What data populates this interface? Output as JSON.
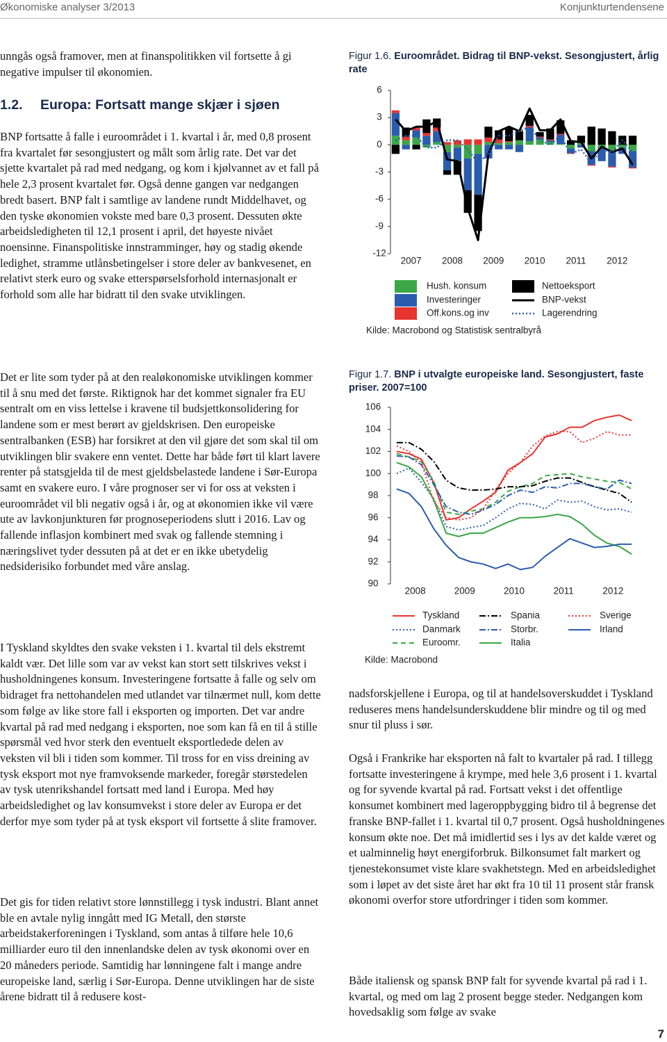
{
  "header": {
    "left": "Økonomiske analyser 3/2013",
    "right": "Konjunkturtendensene"
  },
  "left_column": {
    "intro": "unngås også framover, men at finanspolitikken vil fortsette å gi negative impulser til økonomien.",
    "heading_number": "1.2.",
    "heading": "Europa: Fortsatt mange skjær i sjøen",
    "paragraphs": [
      "BNP fortsatte å falle i euroområdet i 1. kvartal i år, med 0,8 prosent fra kvartalet før sesongjustert og målt som årlig rate. Det var det sjette kvartalet på rad med nedgang, og kom i kjølvannet av et fall på hele 2,3 prosent kvartalet før. Også denne gangen var nedgangen bredt basert. BNP falt i samtlige av landene rundt Middelhavet, og den tyske økonomien vokste med bare 0,3 prosent. Dessuten økte arbeidsledigheten til 12,1 prosent i april, det høyeste nivået noensinne. Finanspolitiske innstramminger, høy og stadig økende ledighet, stramme utlånsbetingelser i store deler av bankvesenet, en relativt sterk euro og svake etterspørselsforhold internasjonalt er forhold som alle har bidratt til den svake utviklingen.",
      "Det er lite som tyder på at den realøkonomiske utviklingen kommer til å snu med det første. Riktignok har det kommet signaler fra EU sentralt om en viss lettelse i kravene til budsjettkonsolidering for landene som er mest berørt av gjeldskrisen. Den europeiske sentralbanken (ESB) har forsikret at den vil gjøre det som skal til om utviklingen blir svakere enn ventet. Dette har både ført til klart lavere renter på statsgjelda til de mest gjeldsbelastede landene i Sør-Europa samt en svakere euro. I våre prognoser ser vi for oss at veksten i euroområdet vil bli negativ også i år, og at økonomien ikke vil være ute av lavkonjunkturen før prognoseperiodens slutt i 2016. Lav og fallende inflasjon kombinert med svak og fallende stemning i næringslivet tyder dessuten på at det er en ikke ubetydelig nedsiderisiko forbundet med våre anslag.",
      "I Tyskland skyldtes den svake veksten i 1. kvartal til dels ekstremt kaldt vær. Det lille som var av vekst kan stort sett tilskrives vekst i husholdningenes konsum. Investeringene fortsatte å falle og selv om bidraget fra nettohandelen med utlandet var tilnærmet null, kom dette som følge av like store fall i eksporten og importen. Det var andre kvartal på rad med nedgang i eksporten, noe som kan få en til å stille spørsmål ved hvor sterk den eventuelt eksportledede delen av veksten vil bli i tiden som kommer. Til tross for en viss dreining av tysk eksport mot nye framvoksende markeder, foregår størstedelen av tysk utenrikshandel fortsatt med land i Europa. Med høy arbeidsledighet og lav konsumvekst i store deler av Europa er det derfor mye som tyder på at tysk eksport vil fortsette å slite framover.",
      "Det gis for tiden relativt store lønnstillegg i tysk industri. Blant annet ble en avtale nylig inngått med IG Metall, den største arbeidstakerforeningen i Tyskland, som antas å tilføre hele 10,6 milliarder euro til den innenlandske delen av tysk økonomi over en 20 måneders periode. Samtidig har lønningene falt i mange andre europeiske land, særlig i Sør-Europa. Denne utviklingen har de siste årene bidratt til å redusere kost-"
    ]
  },
  "right_column": {
    "paragraphs": [
      "nadsforskjellene i Europa, og til at handelsoverskuddet i Tyskland reduseres mens handelsunderskuddene blir mindre og til og med snur til pluss i sør.",
      "Også i Frankrike har eksporten nå falt to kvartaler på rad. I tillegg fortsatte investeringene å krympe, med hele 3,6 prosent i 1. kvartal og for syvende kvartal på rad. Fortsatt vekst i det offentlige konsumet kombinert med lageroppbygging bidro til å begrense det franske BNP-fallet i 1. kvartal til 0,7 prosent. Også husholdningenes konsum økte noe. Det må imidlertid ses i lys av det kalde været og et ualminnelig høyt energiforbruk. Bilkonsumet falt markert og tjenestekonsumet viste klare svakhetstegn. Med en arbeidsledighet som i løpet av det siste året har økt fra 10 til 11 prosent står fransk økonomi overfor store utfordringer i tiden som kommer.",
      "Både italiensk og spansk BNP falt for syvende kvartal på rad i 1. kvartal, og med om lag 2 prosent begge steder. Nedgangen kom hovedsaklig som følge av svake"
    ]
  },
  "page_number": "7",
  "chart_data": [
    {
      "type": "bar",
      "figure_label": "Figur 1.6.",
      "title": "Euroområdet. Bidrag til BNP-vekst. Sesongjustert, årlig rate",
      "source": "Kilde: Macrobond og Statistisk sentralbyrå",
      "categories": [
        "2007",
        null,
        null,
        null,
        "2008",
        null,
        null,
        null,
        "2009",
        null,
        null,
        null,
        "2010",
        null,
        null,
        null,
        "2011",
        null,
        null,
        null,
        "2012",
        null,
        null,
        null
      ],
      "ylim": [
        -12,
        6
      ],
      "yticks": [
        6,
        3,
        0,
        -3,
        -6,
        -9,
        -12
      ],
      "grid": false,
      "series": [
        {
          "name": "Hush. konsum",
          "type": "bar",
          "color": "#3aa845",
          "values": [
            1.0,
            0.5,
            0.8,
            -0.3,
            0.3,
            -0.8,
            -0.3,
            -1.5,
            -1.0,
            0.3,
            0.2,
            0.3,
            0.5,
            0.4,
            0.6,
            0.3,
            0.1,
            -0.4,
            0.2,
            -0.7,
            -0.3,
            -0.6,
            -0.3,
            -0.7
          ]
        },
        {
          "name": "Investeringer",
          "type": "bar",
          "color": "#2a5cae",
          "values": [
            2.5,
            -0.5,
            0.8,
            1.0,
            1.2,
            -2.0,
            -1.5,
            -3.5,
            -4.5,
            -1.5,
            -0.5,
            -0.5,
            -0.8,
            1.5,
            0.2,
            0.2,
            1.0,
            -0.5,
            -0.3,
            -1.5,
            -1.5,
            -1.8,
            -0.7,
            -1.8
          ]
        },
        {
          "name": "Off.kons.og inv",
          "type": "bar",
          "color": "#e8332f",
          "values": [
            0.3,
            0.4,
            0.3,
            0.3,
            0.4,
            0.3,
            0.5,
            0.6,
            0.6,
            0.5,
            0.4,
            0.1,
            0.0,
            0.2,
            0.1,
            0.1,
            0.1,
            -0.1,
            0.0,
            -0.1,
            0.0,
            -0.1,
            0.0,
            -0.1
          ]
        },
        {
          "name": "Nettoeksport",
          "type": "bar",
          "color": "#000000",
          "values": [
            -1.0,
            1.0,
            -0.5,
            1.5,
            1.0,
            -0.5,
            -1.5,
            -2.5,
            -4.0,
            1.2,
            1.0,
            1.5,
            1.0,
            1.2,
            0.5,
            1.2,
            1.5,
            0.5,
            0.8,
            2.0,
            1.8,
            1.5,
            1.0,
            1.0
          ]
        },
        {
          "name": "BNP-vekst",
          "type": "line",
          "dash": "solid",
          "color": "#000000",
          "values": [
            2.8,
            1.5,
            2.0,
            2.0,
            2.6,
            -1.6,
            -1.8,
            -7.0,
            -10.5,
            -1.0,
            1.5,
            2.0,
            1.5,
            4.0,
            1.6,
            1.6,
            2.8,
            0.4,
            0.3,
            -1.5,
            -0.2,
            -0.8,
            -0.4,
            -2.2
          ]
        },
        {
          "name": "Lagerendring",
          "type": "line",
          "dash": "dotted",
          "color": "#2a5cae",
          "values": [
            0.5,
            1.0,
            1.0,
            -0.3,
            -0.3,
            0.5,
            0.5,
            -0.5,
            -2.0,
            -1.0,
            1.0,
            1.0,
            1.5,
            2.0,
            0.5,
            0.0,
            1.0,
            -1.0,
            -0.5,
            -2.0,
            -0.5,
            -0.8,
            0.5,
            -0.8
          ]
        }
      ]
    },
    {
      "type": "line",
      "figure_label": "Figur 1.7.",
      "title": "BNP i utvalgte europeiske land. Sesongjustert, faste priser. 2007=100",
      "source": "Kilde: Macrobond",
      "categories": [
        "2008",
        null,
        null,
        null,
        "2009",
        null,
        null,
        null,
        "2010",
        null,
        null,
        null,
        "2011",
        null,
        null,
        null,
        "2012",
        null,
        null,
        null
      ],
      "ylim": [
        90,
        106
      ],
      "yticks": [
        106,
        104,
        102,
        100,
        98,
        96,
        94,
        92,
        90
      ],
      "grid": false,
      "series": [
        {
          "name": "Tyskland",
          "dash": "solid",
          "color": "#e8332f",
          "values": [
            102.0,
            101.8,
            101.3,
            99.2,
            95.8,
            96.0,
            96.8,
            97.5,
            98.3,
            100.3,
            101.0,
            101.8,
            103.3,
            103.6,
            104.2,
            104.2,
            104.8,
            105.1,
            105.3,
            104.8
          ]
        },
        {
          "name": "Danmark",
          "dash": "dotted",
          "color": "#2a5cae",
          "values": [
            100.0,
            100.5,
            99.2,
            97.7,
            95.2,
            94.9,
            95.1,
            95.3,
            96.0,
            96.8,
            97.3,
            97.2,
            96.8,
            97.6,
            97.4,
            97.5,
            97.0,
            96.7,
            96.8,
            96.5
          ]
        },
        {
          "name": "Euroomr.",
          "dash": "dashed",
          "color": "#3aa845",
          "values": [
            101.8,
            101.5,
            101.1,
            99.3,
            96.5,
            96.3,
            96.6,
            96.8,
            97.4,
            98.4,
            98.8,
            99.1,
            99.8,
            99.9,
            100.0,
            99.7,
            99.5,
            99.3,
            99.2,
            98.6
          ]
        },
        {
          "name": "Spania",
          "dash": "dashdot",
          "color": "#000000",
          "values": [
            102.8,
            102.8,
            102.2,
            101.1,
            99.4,
            98.7,
            98.5,
            98.5,
            98.6,
            98.8,
            98.8,
            98.9,
            99.3,
            99.6,
            99.6,
            99.2,
            98.8,
            98.5,
            98.2,
            97.4
          ]
        },
        {
          "name": "Storbr.",
          "dash": "dashdot",
          "color": "#2a5cae",
          "values": [
            101.6,
            101.5,
            100.8,
            99.0,
            97.0,
            96.5,
            96.3,
            96.7,
            97.2,
            98.0,
            98.5,
            98.3,
            98.8,
            98.7,
            99.1,
            99.1,
            98.8,
            98.6,
            99.4,
            99.1
          ]
        },
        {
          "name": "Italia",
          "dash": "solid",
          "color": "#3aa845",
          "values": [
            101.0,
            100.6,
            99.7,
            97.6,
            94.6,
            94.3,
            94.6,
            94.6,
            95.1,
            95.6,
            96.0,
            96.0,
            96.1,
            96.3,
            96.1,
            95.4,
            94.4,
            93.7,
            93.4,
            92.7
          ]
        },
        {
          "name": "Sverige",
          "dash": "dotted",
          "color": "#e8332f",
          "values": [
            102.5,
            102.0,
            101.0,
            97.5,
            96.0,
            95.8,
            96.0,
            96.8,
            98.5,
            100.0,
            101.0,
            102.5,
            103.4,
            103.8,
            103.8,
            102.8,
            103.2,
            103.8,
            103.5,
            103.5
          ]
        },
        {
          "name": "Irland",
          "dash": "solid",
          "color": "#2a5cae",
          "values": [
            98.6,
            98.2,
            97.0,
            95.0,
            93.5,
            92.4,
            92.0,
            91.8,
            91.4,
            91.8,
            91.3,
            91.5,
            92.5,
            93.3,
            94.1,
            93.7,
            93.3,
            93.4,
            93.6,
            93.6
          ]
        }
      ]
    }
  ]
}
